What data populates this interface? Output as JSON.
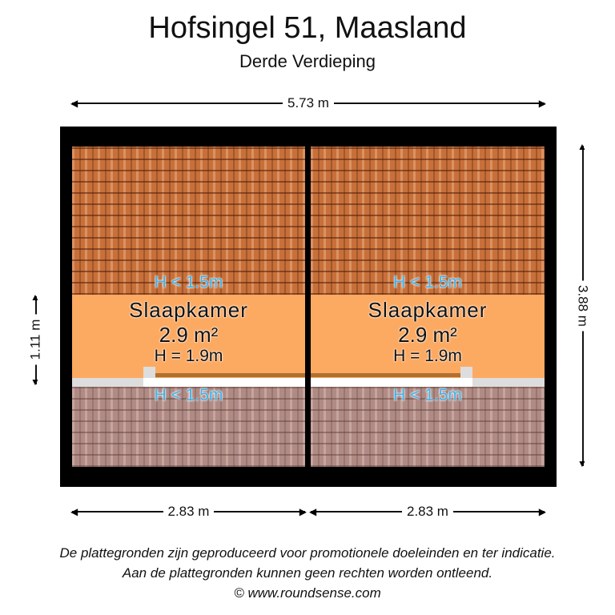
{
  "header": {
    "title": "Hofsingel 51, Maasland",
    "subtitle": "Derde Verdieping"
  },
  "dimensions": {
    "width_total": "5.73 m",
    "height_total": "3.88 m",
    "room_depth": "1.11 m",
    "left_width": "2.83 m",
    "right_width": "2.83 m"
  },
  "rooms": [
    {
      "name": "Slaapkamer",
      "area": "2.9 m²",
      "height": "H = 1.9m",
      "low_top": "H < 1.5m",
      "low_bottom": "H < 1.5m"
    },
    {
      "name": "Slaapkamer",
      "area": "2.9 m²",
      "height": "H = 1.9m",
      "low_top": "H < 1.5m",
      "low_bottom": "H < 1.5m"
    }
  ],
  "colors": {
    "room": "#fcaa62",
    "roof_tiles": "#c8703a",
    "low_height_label": "#3fb1ea",
    "wall": "#000000"
  },
  "footer": {
    "line1": "De plattegronden zijn geproduceerd voor promotionele doeleinden en ter indicatie.",
    "line2": "Aan de plattegronden kunnen geen rechten worden ontleend.",
    "line3": "© www.roundsense.com"
  }
}
